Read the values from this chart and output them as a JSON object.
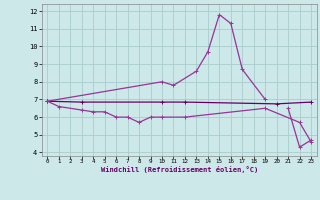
{
  "xlabel": "Windchill (Refroidissement éolien,°C)",
  "xlim": [
    -0.5,
    23.5
  ],
  "ylim": [
    3.8,
    12.4
  ],
  "yticks": [
    4,
    5,
    6,
    7,
    8,
    9,
    10,
    11,
    12
  ],
  "xticks": [
    0,
    1,
    2,
    3,
    4,
    5,
    6,
    7,
    8,
    9,
    10,
    11,
    12,
    13,
    14,
    15,
    16,
    17,
    18,
    19,
    20,
    21,
    22,
    23
  ],
  "background_color": "#cce8e8",
  "grid_color": "#aacccc",
  "series": [
    {
      "x": [
        0,
        1,
        3,
        4,
        5,
        6,
        7,
        8,
        9,
        10,
        12,
        19,
        22,
        23
      ],
      "y": [
        6.9,
        6.6,
        6.4,
        6.3,
        6.3,
        6.0,
        6.0,
        5.7,
        6.0,
        6.0,
        6.0,
        6.5,
        5.7,
        4.6
      ],
      "color": "#993399",
      "lw": 0.9
    },
    {
      "x": [
        0,
        3,
        10,
        12,
        20,
        23
      ],
      "y": [
        6.9,
        6.85,
        6.85,
        6.85,
        6.75,
        6.85
      ],
      "color": "#660066",
      "lw": 0.9
    },
    {
      "x": [
        0,
        10,
        11,
        13,
        14,
        15,
        16,
        17,
        19
      ],
      "y": [
        6.9,
        8.0,
        7.8,
        8.6,
        9.7,
        11.8,
        11.3,
        8.7,
        7.0
      ],
      "color": "#993399",
      "lw": 0.9
    },
    {
      "x": [
        21,
        22,
        23
      ],
      "y": [
        6.5,
        4.3,
        4.7
      ],
      "color": "#993399",
      "lw": 0.9
    }
  ]
}
